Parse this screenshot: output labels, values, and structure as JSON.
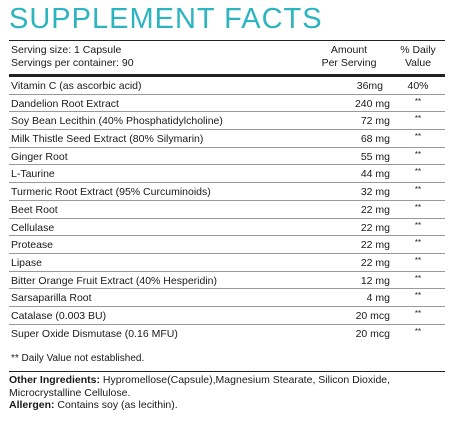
{
  "title": "SUPPLEMENT FACTS",
  "header": {
    "serving_size": "Serving size: 1 Capsule",
    "servings_per_container": "Servings per container: 90",
    "amount_line1": "Amount",
    "amount_line2": "Per Serving",
    "dv_line1": "% Daily",
    "dv_line2": "Value"
  },
  "rows": [
    {
      "name": "Vitamin C (as ascorbic acid)",
      "amount": "36mg",
      "dv": "40%"
    },
    {
      "name": "Dandelion Root Extract",
      "amount": "240 mg",
      "dv": "**"
    },
    {
      "name": "Soy Bean Lecithin (40% Phosphatidylcholine)",
      "amount": "72 mg",
      "dv": "**"
    },
    {
      "name": "Milk Thistle Seed Extract (80% Silymarin)",
      "amount": "68 mg",
      "dv": "**"
    },
    {
      "name": "Ginger Root",
      "amount": "55 mg",
      "dv": "**"
    },
    {
      "name": "L-Taurine",
      "amount": "44 mg",
      "dv": "**"
    },
    {
      "name": "Turmeric Root Extract (95% Curcuminoids)",
      "amount": "32 mg",
      "dv": "**"
    },
    {
      "name": "Beet Root",
      "amount": "22 mg",
      "dv": "**"
    },
    {
      "name": "Cellulase",
      "amount": "22 mg",
      "dv": "**"
    },
    {
      "name": "Protease",
      "amount": "22 mg",
      "dv": "**"
    },
    {
      "name": "Lipase",
      "amount": "22 mg",
      "dv": "**"
    },
    {
      "name": "Bitter Orange Fruit Extract (40% Hesperidin)",
      "amount": "12 mg",
      "dv": "**"
    },
    {
      "name": "Sarsaparilla Root",
      "amount": "4 mg",
      "dv": "**"
    },
    {
      "name": "Catalase (0.003 BU)",
      "amount": "20 mcg",
      "dv": "**"
    },
    {
      "name": "Super Oxide Dismutase (0.16 MFU)",
      "amount": "20 mcg",
      "dv": "**"
    }
  ],
  "footnote": "** Daily Value not established.",
  "other_ingredients_label": "Other Ingredients:",
  "other_ingredients_text": " Hypromellose(Capsule),Magnesium Stearate, Silicon Dioxide, Microcrystalline Cellulose.",
  "allergen_label": "Allergen:",
  "allergen_text": " Contains soy (as lecithin).",
  "colors": {
    "title": "#2cb5c0",
    "text": "#1a1a1a",
    "rule": "#222222"
  }
}
